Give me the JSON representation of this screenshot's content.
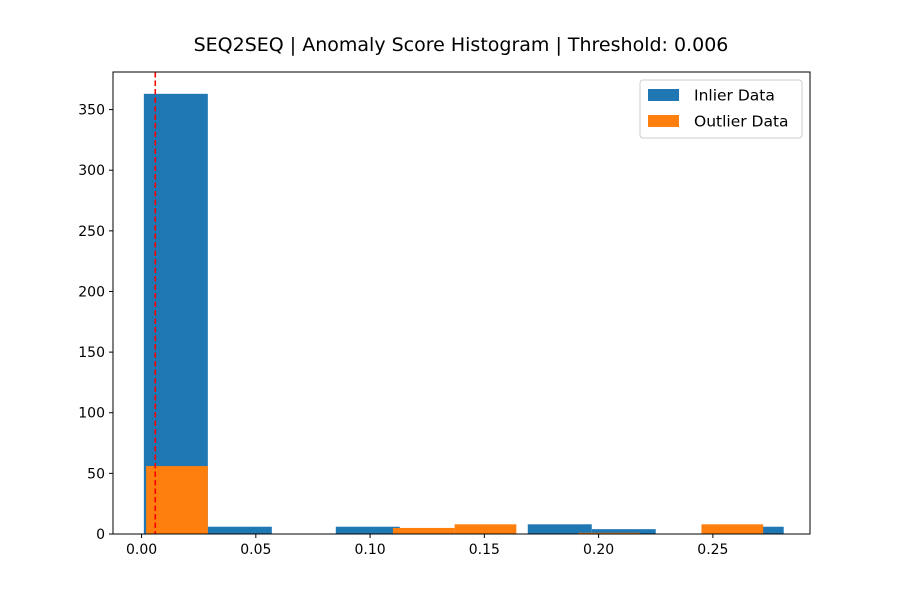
{
  "chart_data": {
    "type": "bar",
    "title": "SEQ2SEQ | Anomaly Score Histogram | Threshold: 0.006",
    "xlabel": "",
    "ylabel": "",
    "xlim": [
      -0.0125,
      0.2925
    ],
    "ylim": [
      0,
      381
    ],
    "x_ticks": [
      0.0,
      0.05,
      0.1,
      0.15,
      0.2,
      0.25
    ],
    "x_tick_labels": [
      "0.00",
      "0.05",
      "0.10",
      "0.15",
      "0.20",
      "0.25"
    ],
    "y_ticks": [
      0,
      50,
      100,
      150,
      200,
      250,
      300,
      350
    ],
    "y_tick_labels": [
      "0",
      "50",
      "100",
      "150",
      "200",
      "250",
      "300",
      "350"
    ],
    "grid": false,
    "legend_position": "top-right",
    "threshold": {
      "value": 0.006,
      "color": "#ff0000",
      "style": "dashed"
    },
    "series": [
      {
        "name": "Inlier Data",
        "color": "#1f77b4",
        "bins": [
          {
            "x0": 0.001,
            "x1": 0.029,
            "count": 363
          },
          {
            "x0": 0.029,
            "x1": 0.057,
            "count": 6
          },
          {
            "x0": 0.085,
            "x1": 0.113,
            "count": 6
          },
          {
            "x0": 0.169,
            "x1": 0.197,
            "count": 8
          },
          {
            "x0": 0.197,
            "x1": 0.225,
            "count": 4
          },
          {
            "x0": 0.253,
            "x1": 0.281,
            "count": 6
          }
        ]
      },
      {
        "name": "Outlier Data",
        "color": "#ff7f0e",
        "bins": [
          {
            "x0": 0.002,
            "x1": 0.029,
            "count": 56
          },
          {
            "x0": 0.11,
            "x1": 0.137,
            "count": 5
          },
          {
            "x0": 0.137,
            "x1": 0.164,
            "count": 8
          },
          {
            "x0": 0.191,
            "x1": 0.218,
            "count": 1
          },
          {
            "x0": 0.245,
            "x1": 0.272,
            "count": 8
          }
        ]
      }
    ]
  }
}
